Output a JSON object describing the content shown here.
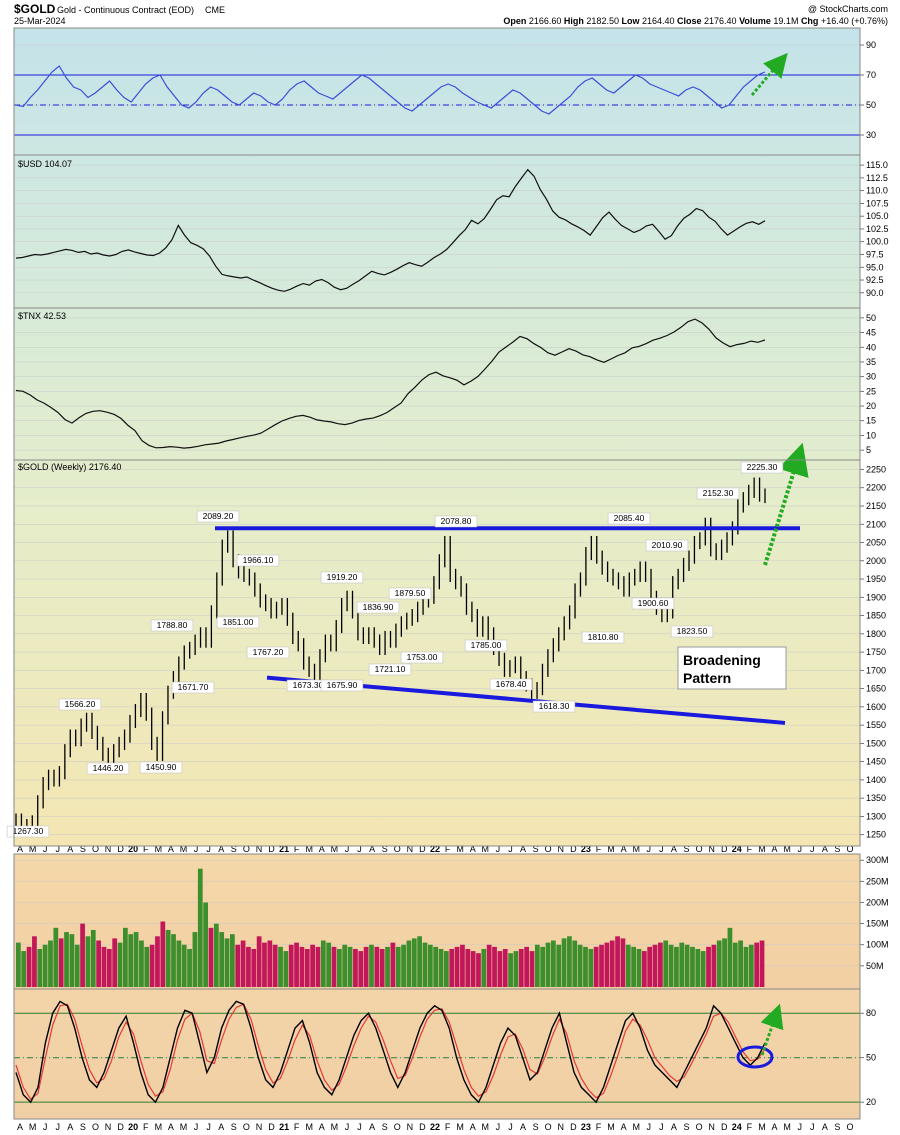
{
  "header": {
    "symbol": "$GOLD",
    "name": "Gold - Continuous Contract (EOD)",
    "exchange": "CME",
    "date": "25-Mar-2024",
    "copyright": "@ StockCharts.com",
    "quote": [
      {
        "label": "Open",
        "value": "2166.60"
      },
      {
        "label": "High",
        "value": "2182.50"
      },
      {
        "label": "Low",
        "value": "2164.40"
      },
      {
        "label": "Close",
        "value": "2176.40"
      },
      {
        "label": "Volume",
        "value": "19.1M"
      },
      {
        "label": "Chg",
        "value": "+16.40 (+0.76%)"
      }
    ]
  },
  "colors": {
    "blue_line": "#1a1adf",
    "green_arrow": "#22aa22",
    "up_bar": "#3d8f2d",
    "down_bar": "#c2185b",
    "stoch_fast": "#000000",
    "stoch_slow": "#e53935"
  },
  "annotation": {
    "line1": "Broadening",
    "line2": "Pattern"
  },
  "x_axis": {
    "months": [
      "A",
      "M",
      "J",
      "J",
      "A",
      "S",
      "O",
      "N",
      "D",
      "20",
      "F",
      "M",
      "A",
      "M",
      "J",
      "J",
      "A",
      "S",
      "O",
      "N",
      "D",
      "21",
      "F",
      "M",
      "A",
      "M",
      "J",
      "J",
      "A",
      "S",
      "O",
      "N",
      "D",
      "22",
      "F",
      "M",
      "A",
      "M",
      "J",
      "J",
      "A",
      "S",
      "O",
      "N",
      "D",
      "23",
      "F",
      "M",
      "A",
      "M",
      "J",
      "J",
      "A",
      "S",
      "O",
      "N",
      "D",
      "24",
      "F",
      "M",
      "A",
      "M",
      "J",
      "J",
      "A",
      "S",
      "O"
    ],
    "year_labels": [
      "20",
      "21",
      "22",
      "23",
      "24"
    ]
  },
  "chart_data": [
    {
      "panel": "rsi",
      "type": "line",
      "ylim": [
        20,
        100
      ],
      "ticks": [
        "90",
        "70",
        "50",
        "30"
      ],
      "reference_lines": [
        70,
        50,
        30
      ],
      "values": [
        50,
        49,
        55,
        60,
        66,
        72,
        76,
        68,
        62,
        60,
        55,
        58,
        62,
        66,
        60,
        55,
        52,
        58,
        64,
        68,
        70,
        62,
        56,
        50,
        48,
        52,
        58,
        62,
        60,
        56,
        52,
        50,
        54,
        58,
        56,
        52,
        50,
        54,
        60,
        64,
        66,
        62,
        58,
        56,
        54,
        58,
        62,
        66,
        70,
        68,
        64,
        60,
        56,
        52,
        48,
        46,
        50,
        54,
        58,
        62,
        64,
        62,
        58,
        55,
        52,
        50,
        48,
        52,
        56,
        60,
        58,
        54,
        50,
        46,
        44,
        48,
        52,
        56,
        62,
        66,
        68,
        64,
        60,
        58,
        62,
        66,
        70,
        68,
        64,
        62,
        60,
        58,
        56,
        60,
        62,
        60,
        56,
        52,
        48,
        50,
        56,
        62,
        66,
        70,
        72
      ]
    },
    {
      "panel": "usd",
      "label": "$USD 104.07",
      "type": "line",
      "ylim": [
        88,
        116
      ],
      "ticks": [
        "115.0",
        "112.5",
        "110.0",
        "107.5",
        "105.0",
        "102.5",
        "100.0",
        "97.5",
        "95.0",
        "92.5",
        "90.0"
      ],
      "values": [
        96.8,
        96.9,
        97.2,
        97.5,
        97.4,
        97.6,
        97.9,
        98.2,
        98.5,
        98.3,
        97.9,
        98.1,
        97.6,
        97.8,
        97.4,
        97.2,
        97.5,
        98.1,
        98.4,
        98.0,
        97.7,
        97.4,
        97.3,
        97.8,
        98.8,
        100.4,
        103.2,
        101.3,
        99.8,
        99.3,
        98.6,
        97.2,
        95.2,
        93.6,
        93.3,
        93.1,
        92.9,
        93.1,
        92.5,
        92.0,
        91.4,
        90.9,
        90.5,
        90.3,
        90.7,
        91.3,
        91.8,
        91.5,
        92.3,
        92.6,
        92.0,
        91.1,
        90.6,
        90.9,
        91.7,
        92.4,
        93.3,
        94.2,
        93.8,
        93.5,
        94.0,
        94.6,
        95.3,
        95.9,
        95.5,
        95.2,
        96.0,
        96.9,
        97.6,
        98.5,
        99.8,
        101.2,
        102.4,
        104.2,
        103.5,
        104.5,
        106.3,
        108.2,
        109.0,
        108.8,
        110.8,
        112.5,
        114.1,
        112.8,
        110.2,
        108.3,
        106.0,
        104.8,
        104.3,
        103.5,
        102.9,
        102.2,
        101.3,
        103.0,
        104.7,
        105.8,
        104.4,
        103.2,
        102.5,
        101.8,
        102.3,
        103.1,
        103.4,
        102.0,
        100.5,
        101.2,
        103.1,
        104.6,
        105.4,
        106.5,
        106.1,
        104.8,
        104.0,
        102.5,
        101.3,
        102.1,
        102.9,
        103.6,
        103.9,
        103.4,
        104.1
      ]
    },
    {
      "panel": "tnx",
      "label": "$TNX 42.53",
      "type": "line",
      "ylim": [
        3,
        52
      ],
      "ticks": [
        "50",
        "45",
        "40",
        "35",
        "30",
        "25",
        "20",
        "15",
        "10",
        "5"
      ],
      "values": [
        25.3,
        25.0,
        23.8,
        22.1,
        21.0,
        19.5,
        17.8,
        15.4,
        14.2,
        16.0,
        17.5,
        18.2,
        18.4,
        17.9,
        17.2,
        15.8,
        13.4,
        11.6,
        8.2,
        6.6,
        5.8,
        5.9,
        6.2,
        6.0,
        5.7,
        5.9,
        6.3,
        6.8,
        7.1,
        7.4,
        8.1,
        8.6,
        9.2,
        9.7,
        10.1,
        10.8,
        12.2,
        13.6,
        14.9,
        15.8,
        16.5,
        16.8,
        16.2,
        15.3,
        14.9,
        14.6,
        14.0,
        13.7,
        14.2,
        15.1,
        15.6,
        15.9,
        16.7,
        17.8,
        19.4,
        21.0,
        24.2,
        26.4,
        28.9,
        30.7,
        31.5,
        30.3,
        29.6,
        28.8,
        27.2,
        28.5,
        30.1,
        32.6,
        35.3,
        38.4,
        40.1,
        41.8,
        43.7,
        42.9,
        41.2,
        39.9,
        38.1,
        37.3,
        38.4,
        39.5,
        38.7,
        37.4,
        36.8,
        35.7,
        34.9,
        36.0,
        37.2,
        38.1,
        39.8,
        40.3,
        41.2,
        42.4,
        43.1,
        44.0,
        45.2,
        46.8,
        48.7,
        49.6,
        48.3,
        46.1,
        43.2,
        41.5,
        40.2,
        40.9,
        41.3,
        42.1,
        41.7,
        42.5
      ]
    },
    {
      "panel": "gold",
      "label": "$GOLD (Weekly) 2176.40",
      "type": "line",
      "ylim": [
        1230,
        2265
      ],
      "ticks": [
        "2250",
        "2200",
        "2150",
        "2100",
        "2050",
        "2000",
        "1950",
        "1900",
        "1850",
        "1800",
        "1750",
        "1700",
        "1650",
        "1600",
        "1550",
        "1500",
        "1450",
        "1400",
        "1350",
        "1300",
        "1250"
      ],
      "values": [
        1290,
        1275,
        1270,
        1285,
        1340,
        1390,
        1410,
        1400,
        1420,
        1480,
        1520,
        1510,
        1550,
        1566,
        1530,
        1500,
        1470,
        1460,
        1480,
        1500,
        1520,
        1560,
        1590,
        1620,
        1580,
        1500,
        1470,
        1570,
        1640,
        1680,
        1720,
        1750,
        1760,
        1780,
        1800,
        1780,
        1860,
        1950,
        2040,
        2065,
        2000,
        1970,
        1960,
        1950,
        1920,
        1890,
        1880,
        1860,
        1870,
        1880,
        1840,
        1790,
        1770,
        1720,
        1700,
        1690,
        1740,
        1780,
        1770,
        1820,
        1880,
        1900,
        1860,
        1800,
        1790,
        1800,
        1780,
        1760,
        1790,
        1780,
        1810,
        1830,
        1840,
        1850,
        1870,
        1890,
        1900,
        1940,
        2000,
        2050,
        1960,
        1940,
        1920,
        1870,
        1850,
        1810,
        1830,
        1800,
        1760,
        1730,
        1700,
        1710,
        1720,
        1680,
        1660,
        1640,
        1650,
        1700,
        1740,
        1770,
        1800,
        1830,
        1860,
        1920,
        1950,
        2020,
        2050,
        2010,
        1980,
        1960,
        1950,
        1940,
        1920,
        1950,
        1960,
        1980,
        1960,
        1900,
        1870,
        1850,
        1860,
        1940,
        1960,
        1990,
        2010,
        2050,
        2060,
        2100,
        2030,
        2020,
        2040,
        2060,
        2090,
        2150,
        2170,
        2190,
        2210,
        2180,
        2176
      ]
    },
    {
      "panel": "volume",
      "type": "bar",
      "ylim": [
        0,
        310
      ],
      "ticks": [
        "300M",
        "250M",
        "200M",
        "150M",
        "100M",
        "50M"
      ],
      "values": [
        105,
        85,
        95,
        120,
        90,
        100,
        110,
        140,
        115,
        130,
        125,
        100,
        150,
        120,
        135,
        110,
        95,
        90,
        115,
        105,
        140,
        125,
        130,
        110,
        95,
        100,
        120,
        155,
        135,
        125,
        110,
        100,
        90,
        130,
        280,
        200,
        140,
        150,
        130,
        115,
        125,
        100,
        110,
        95,
        90,
        120,
        105,
        110,
        100,
        95,
        85,
        100,
        105,
        95,
        90,
        100,
        95,
        110,
        105,
        95,
        90,
        100,
        95,
        90,
        85,
        95,
        100,
        95,
        90,
        95,
        105,
        95,
        100,
        110,
        115,
        120,
        105,
        100,
        95,
        90,
        85,
        90,
        95,
        100,
        90,
        85,
        80,
        90,
        100,
        95,
        85,
        90,
        80,
        85,
        90,
        95,
        85,
        100,
        95,
        105,
        110,
        100,
        115,
        120,
        110,
        100,
        95,
        90,
        95,
        100,
        105,
        110,
        120,
        115,
        100,
        95,
        90,
        85,
        95,
        100,
        105,
        110,
        100,
        95,
        105,
        100,
        95,
        90,
        85,
        95,
        100,
        110,
        115,
        140,
        105,
        110,
        95,
        100,
        105,
        110
      ]
    },
    {
      "panel": "stochastic",
      "type": "line",
      "ylim": [
        10,
        95
      ],
      "ticks": [
        "80",
        "50",
        "20"
      ],
      "reference_lines": [
        80,
        50,
        20
      ],
      "series": [
        {
          "values": [
            40,
            25,
            20,
            30,
            60,
            80,
            88,
            85,
            70,
            50,
            35,
            30,
            40,
            55,
            70,
            78,
            60,
            40,
            25,
            20,
            30,
            50,
            70,
            82,
            80,
            60,
            40,
            50,
            70,
            82,
            88,
            86,
            70,
            50,
            35,
            30,
            40,
            55,
            70,
            75,
            60,
            40,
            30,
            25,
            35,
            50,
            65,
            75,
            80,
            70,
            55,
            40,
            30,
            40,
            55,
            70,
            80,
            85,
            82,
            70,
            50,
            35,
            25,
            20,
            30,
            45,
            60,
            70,
            65,
            50,
            35,
            40,
            55,
            70,
            80,
            60,
            40,
            30,
            25,
            20,
            30,
            45,
            60,
            75,
            80,
            70,
            55,
            45,
            40,
            35,
            30,
            40,
            50,
            60,
            70,
            85,
            80,
            70,
            60,
            50,
            45,
            50,
            60
          ]
        },
        {
          "values": [
            45,
            30,
            22,
            26,
            50,
            72,
            85,
            86,
            76,
            58,
            42,
            33,
            36,
            48,
            64,
            74,
            66,
            48,
            32,
            24,
            27,
            42,
            62,
            76,
            80,
            68,
            48,
            46,
            62,
            76,
            84,
            86,
            76,
            58,
            42,
            33,
            36,
            48,
            62,
            72,
            65,
            48,
            35,
            28,
            32,
            44,
            58,
            70,
            78,
            74,
            62,
            48,
            36,
            38,
            50,
            64,
            76,
            82,
            83,
            74,
            58,
            42,
            30,
            24,
            27,
            38,
            52,
            64,
            66,
            56,
            42,
            39,
            50,
            64,
            76,
            66,
            48,
            36,
            28,
            23,
            26,
            38,
            52,
            68,
            76,
            72,
            62,
            50,
            44,
            38,
            34,
            37,
            46,
            56,
            66,
            78,
            80,
            74,
            64,
            54,
            48,
            49,
            56
          ]
        }
      ]
    }
  ],
  "gold_labels": [
    "2089.20",
    "2078.80",
    "2085.40",
    "2225.30",
    "2152.30",
    "2010.90",
    "1966.10",
    "1919.20",
    "1879.50",
    "1836.90",
    "1851.00",
    "1788.80",
    "1767.20",
    "1753.00",
    "1721.10",
    "1673.30",
    "1675.90",
    "1785.00",
    "1678.40",
    "1618.30",
    "1810.80",
    "1900.60",
    "1823.50",
    "1671.70",
    "1566.20",
    "1446.20",
    "1450.90",
    "1267.30"
  ]
}
